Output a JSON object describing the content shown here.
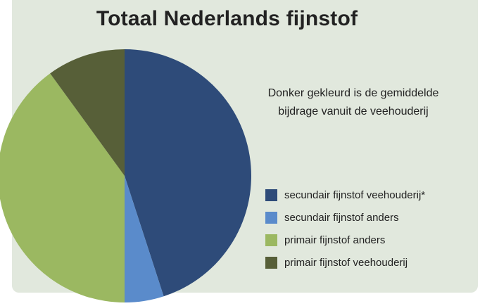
{
  "chart_data": {
    "type": "pie",
    "title": "Totaal Nederlands fijnstof",
    "annotation": "Donker gekleurd is de gemiddelde bijdrage vanuit de veehouderij",
    "legend_position": "right",
    "start_angle": "top, clockwise",
    "series": [
      {
        "name": "secundair fijnstof veehouderij*",
        "value": 45,
        "color": "#2e4b79"
      },
      {
        "name": "secundair fijnstof anders",
        "value": 5,
        "color": "#5a8bcb"
      },
      {
        "name": "primair fijnstof anders",
        "value": 40,
        "color": "#9bb861"
      },
      {
        "name": "primair fijnstof veehouderij",
        "value": 10,
        "color": "#575f38"
      }
    ]
  }
}
